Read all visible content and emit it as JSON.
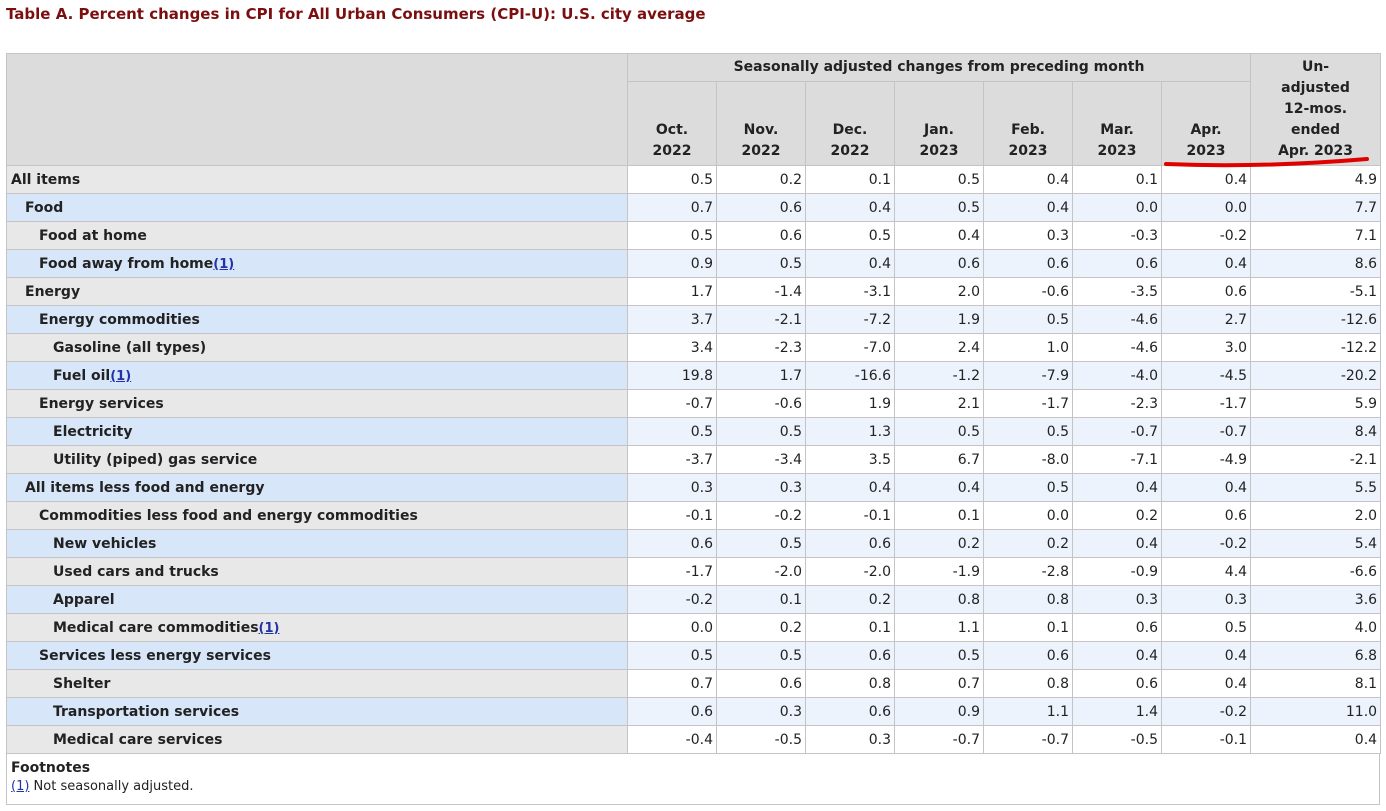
{
  "title": "Table A. Percent changes in CPI for All Urban Consumers (CPI-U): U.S. city average",
  "table": {
    "group_header": "Seasonally adjusted changes from preceding month",
    "month_headers": [
      [
        "Oct.",
        "2022"
      ],
      [
        "Nov.",
        "2022"
      ],
      [
        "Dec.",
        "2022"
      ],
      [
        "Jan.",
        "2023"
      ],
      [
        "Feb.",
        "2023"
      ],
      [
        "Mar.",
        "2023"
      ],
      [
        "Apr.",
        "2023"
      ]
    ],
    "last_header": [
      "Un-",
      "adjusted",
      "12-mos.",
      "ended",
      "Apr. 2023"
    ],
    "rows": [
      {
        "label": "All items",
        "values": [
          "0.5",
          "0.2",
          "0.1",
          "0.5",
          "0.4",
          "0.1",
          "0.4",
          "4.9"
        ]
      },
      {
        "label": "Food",
        "values": [
          "0.7",
          "0.6",
          "0.4",
          "0.5",
          "0.4",
          "0.0",
          "0.0",
          "7.7"
        ]
      },
      {
        "label": "Food at home",
        "values": [
          "0.5",
          "0.6",
          "0.5",
          "0.4",
          "0.3",
          "-0.3",
          "-0.2",
          "7.1"
        ]
      },
      {
        "label": "Food away from home",
        "note": "(1)",
        "values": [
          "0.9",
          "0.5",
          "0.4",
          "0.6",
          "0.6",
          "0.6",
          "0.4",
          "8.6"
        ]
      },
      {
        "label": "Energy",
        "values": [
          "1.7",
          "-1.4",
          "-3.1",
          "2.0",
          "-0.6",
          "-3.5",
          "0.6",
          "-5.1"
        ]
      },
      {
        "label": "Energy commodities",
        "values": [
          "3.7",
          "-2.1",
          "-7.2",
          "1.9",
          "0.5",
          "-4.6",
          "2.7",
          "-12.6"
        ]
      },
      {
        "label": "Gasoline (all types)",
        "values": [
          "3.4",
          "-2.3",
          "-7.0",
          "2.4",
          "1.0",
          "-4.6",
          "3.0",
          "-12.2"
        ]
      },
      {
        "label": "Fuel oil",
        "note": "(1)",
        "values": [
          "19.8",
          "1.7",
          "-16.6",
          "-1.2",
          "-7.9",
          "-4.0",
          "-4.5",
          "-20.2"
        ]
      },
      {
        "label": "Energy services",
        "values": [
          "-0.7",
          "-0.6",
          "1.9",
          "2.1",
          "-1.7",
          "-2.3",
          "-1.7",
          "5.9"
        ]
      },
      {
        "label": "Electricity",
        "values": [
          "0.5",
          "0.5",
          "1.3",
          "0.5",
          "0.5",
          "-0.7",
          "-0.7",
          "8.4"
        ]
      },
      {
        "label": "Utility (piped) gas service",
        "values": [
          "-3.7",
          "-3.4",
          "3.5",
          "6.7",
          "-8.0",
          "-7.1",
          "-4.9",
          "-2.1"
        ]
      },
      {
        "label": "All items less food and energy",
        "values": [
          "0.3",
          "0.3",
          "0.4",
          "0.4",
          "0.5",
          "0.4",
          "0.4",
          "5.5"
        ]
      },
      {
        "label": "Commodities less food and energy commodities",
        "values": [
          "-0.1",
          "-0.2",
          "-0.1",
          "0.1",
          "0.0",
          "0.2",
          "0.6",
          "2.0"
        ]
      },
      {
        "label": "New vehicles",
        "values": [
          "0.6",
          "0.5",
          "0.6",
          "0.2",
          "0.2",
          "0.4",
          "-0.2",
          "5.4"
        ]
      },
      {
        "label": "Used cars and trucks",
        "values": [
          "-1.7",
          "-2.0",
          "-2.0",
          "-1.9",
          "-2.8",
          "-0.9",
          "4.4",
          "-6.6"
        ]
      },
      {
        "label": "Apparel",
        "values": [
          "-0.2",
          "0.1",
          "0.2",
          "0.8",
          "0.8",
          "0.3",
          "0.3",
          "3.6"
        ]
      },
      {
        "label": "Medical care commodities",
        "note": "(1)",
        "values": [
          "0.0",
          "0.2",
          "0.1",
          "1.1",
          "0.1",
          "0.6",
          "0.5",
          "4.0"
        ]
      },
      {
        "label": "Services less energy services",
        "values": [
          "0.5",
          "0.5",
          "0.6",
          "0.5",
          "0.6",
          "0.4",
          "0.4",
          "6.8"
        ]
      },
      {
        "label": "Shelter",
        "values": [
          "0.7",
          "0.6",
          "0.8",
          "0.7",
          "0.8",
          "0.6",
          "0.4",
          "8.1"
        ]
      },
      {
        "label": "Transportation services",
        "values": [
          "0.6",
          "0.3",
          "0.6",
          "0.9",
          "1.1",
          "1.4",
          "-0.2",
          "11.0"
        ]
      },
      {
        "label": "Medical care services",
        "values": [
          "-0.4",
          "-0.5",
          "0.3",
          "-0.7",
          "-0.7",
          "-0.5",
          "-0.1",
          "0.4"
        ]
      }
    ]
  },
  "footnotes": {
    "heading": "Footnotes",
    "items": [
      {
        "marker": "(1)",
        "text": " Not seasonally adjusted."
      }
    ]
  }
}
